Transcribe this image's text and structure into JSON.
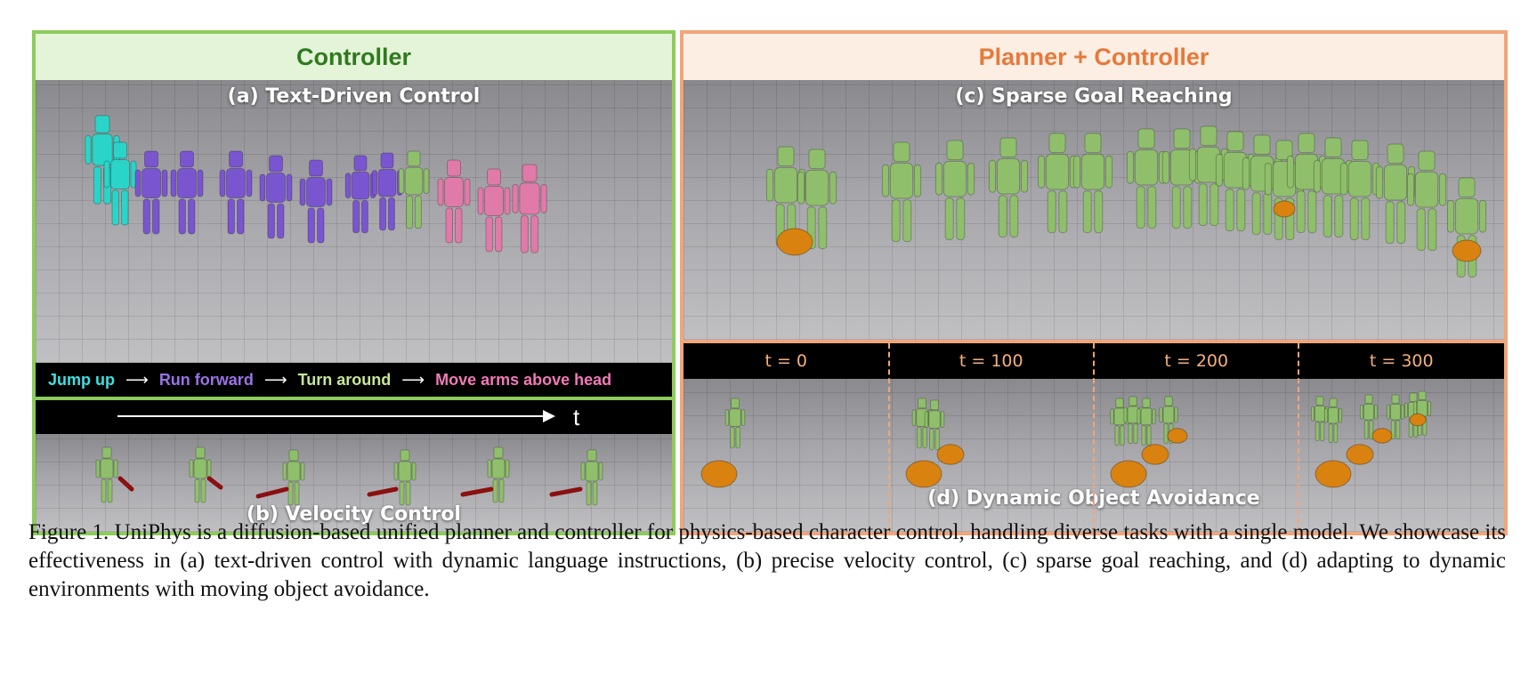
{
  "left_panel": {
    "title": "Controller",
    "scene_a_label": "(a) Text-Driven Control",
    "instructions": [
      {
        "text": "Jump up",
        "color": "#3ee0e0"
      },
      {
        "text": "Run forward",
        "color": "#9b72e6"
      },
      {
        "text": "Turn around",
        "color": "#c7e69a"
      },
      {
        "text": "Move arms above head",
        "color": "#f07ab4"
      }
    ],
    "arrow_glyph": "⟶",
    "time_label": "t",
    "scene_b_label": "(b) Velocity Control"
  },
  "right_panel": {
    "title": "Planner + Controller",
    "scene_c_label": "(c) Sparse Goal Reaching",
    "time_steps": [
      "t = 0",
      "t = 100",
      "t = 200",
      "t = 300"
    ],
    "scene_d_label": "(d) Dynamic Object Avoidance"
  },
  "colors": {
    "controller_border": "#8ccc5a",
    "planner_border": "#f0a57a",
    "character_green": "#8fbf6a",
    "character_cyan": "#2ad4c8",
    "character_purple": "#7a55d0",
    "character_pink": "#e07aa8",
    "obstacle_orange": "#d9820f",
    "velocity_arrow": "#8b1010"
  },
  "caption": "Figure 1. UniPhys is a diffusion-based unified planner and controller for physics-based character control, handling diverse tasks with a single model. We showcase its effectiveness in (a) text-driven control with dynamic language instructions, (b) precise velocity control, (c) sparse goal reaching, and (d) adapting to dynamic environments with moving object avoidance."
}
